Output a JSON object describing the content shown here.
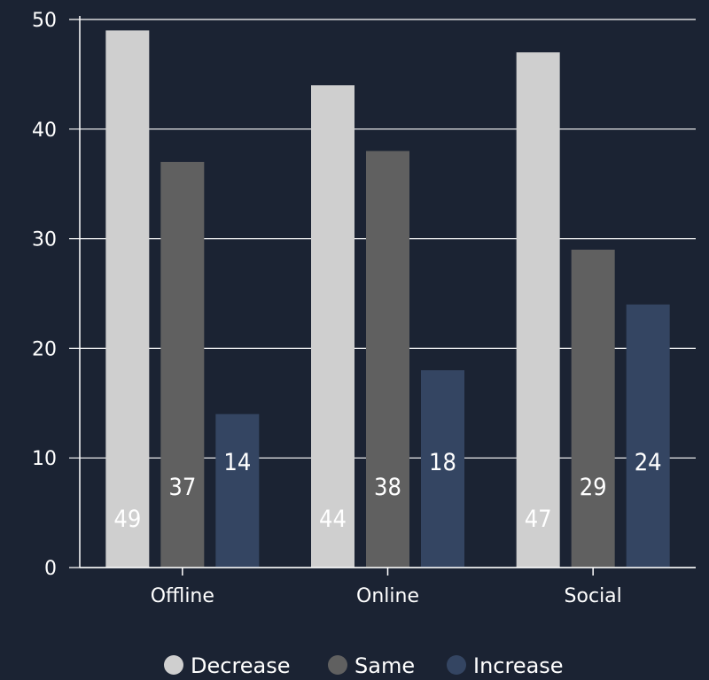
{
  "chart_data": {
    "type": "bar",
    "categories": [
      "Offline",
      "Online",
      "Social"
    ],
    "series": [
      {
        "name": "Decrease",
        "values": [
          49,
          44,
          47
        ],
        "color": "#cfcfcf"
      },
      {
        "name": "Same",
        "values": [
          37,
          38,
          29
        ],
        "color": "#606060"
      },
      {
        "name": "Increase",
        "values": [
          14,
          18,
          24
        ],
        "color": "#344562"
      }
    ],
    "yticks": [
      "0",
      "10",
      "20",
      "30",
      "40",
      "50"
    ],
    "ylim": [
      0,
      50
    ],
    "grid": true,
    "legend_position": "bottom",
    "title": "",
    "xlabel": "",
    "ylabel": "",
    "colors": {
      "background": "#1b2333",
      "grid": "#ffffff",
      "text": "#ffffff"
    }
  }
}
